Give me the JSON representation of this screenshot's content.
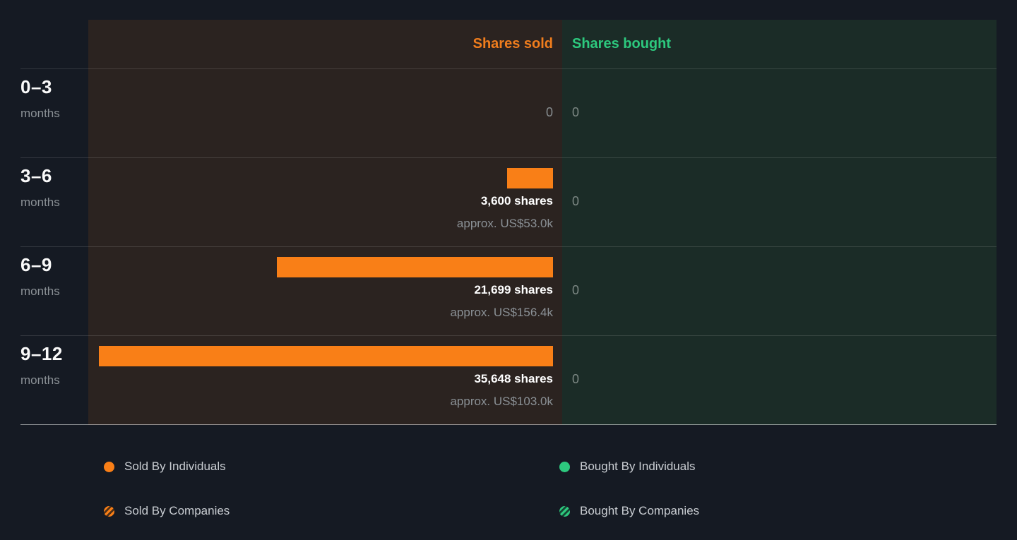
{
  "header": {
    "sold_label": "Shares sold",
    "bought_label": "Shares bought"
  },
  "rows": [
    {
      "period": "0–3",
      "period_unit": "months",
      "sold_value_label": "0",
      "sold_approx_label": "",
      "bought_value_label": "0"
    },
    {
      "period": "3–6",
      "period_unit": "months",
      "sold_value_label": "3,600 shares",
      "sold_approx_label": "approx. US$53.0k",
      "bought_value_label": "0"
    },
    {
      "period": "6–9",
      "period_unit": "months",
      "sold_value_label": "21,699 shares",
      "sold_approx_label": "approx. US$156.4k",
      "bought_value_label": "0"
    },
    {
      "period": "9–12",
      "period_unit": "months",
      "sold_value_label": "35,648 shares",
      "sold_approx_label": "approx. US$103.0k",
      "bought_value_label": "0"
    }
  ],
  "legend": {
    "sold_individuals": {
      "label": "Sold By Individuals"
    },
    "sold_companies": {
      "label": "Sold By Companies"
    },
    "bought_individuals": {
      "label": "Bought By Individuals"
    },
    "bought_companies": {
      "label": "Bought By Companies"
    }
  },
  "colors": {
    "sold_accent": "#f97f17",
    "bought_accent": "#2dc97e",
    "sold_panel_bg": "#2b2320",
    "bought_panel_bg": "#1b2c27",
    "page_bg": "#151a23"
  },
  "chart_data": {
    "type": "bar",
    "orientation": "horizontal",
    "categories": [
      "0–3 months",
      "3–6 months",
      "6–9 months",
      "9–12 months"
    ],
    "series": [
      {
        "name": "Shares sold",
        "values": [
          0,
          3600,
          21699,
          35648
        ],
        "approx_values": [
          "",
          "US$53.0k",
          "US$156.4k",
          "US$103.0k"
        ],
        "color": "#f97f17"
      },
      {
        "name": "Shares bought",
        "values": [
          0,
          0,
          0,
          0
        ],
        "color": "#2dc97e"
      }
    ],
    "xlim": [
      0,
      35648
    ],
    "grid": "horizontal-row-dividers",
    "legend_position": "bottom",
    "legend_entries": [
      "Sold By Individuals",
      "Sold By Companies",
      "Bought By Individuals",
      "Bought By Companies"
    ]
  }
}
